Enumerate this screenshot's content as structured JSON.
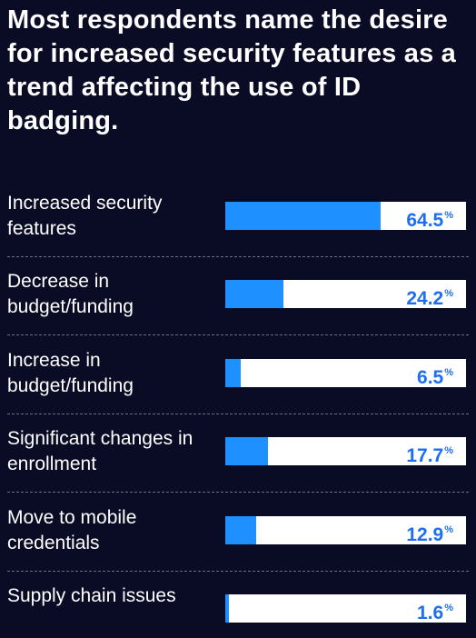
{
  "chart_data": {
    "type": "bar",
    "orientation": "horizontal",
    "title": "Most respondents name the desire for increased security features as a trend affecting the use of ID badging.",
    "categories": [
      "Increased security features",
      "Decrease in budget/funding",
      "Increase in budget/funding",
      "Significant changes in enrollment",
      "Move to mobile credentials",
      "Supply chain issues"
    ],
    "values": [
      64.5,
      24.2,
      6.5,
      17.7,
      12.9,
      1.6
    ],
    "value_labels": [
      "64.5",
      "24.2",
      "6.5",
      "17.7",
      "12.9",
      "1.6"
    ],
    "unit": "%",
    "xlim": [
      0,
      100
    ],
    "grid": false,
    "legend": "none",
    "colors": {
      "background": "#0a0c26",
      "bar_fill": "#1e90ff",
      "bar_track": "#ffffff",
      "value_text": "#1e6ff0",
      "label_text": "#ffffff",
      "divider": "#6b6f86"
    }
  }
}
